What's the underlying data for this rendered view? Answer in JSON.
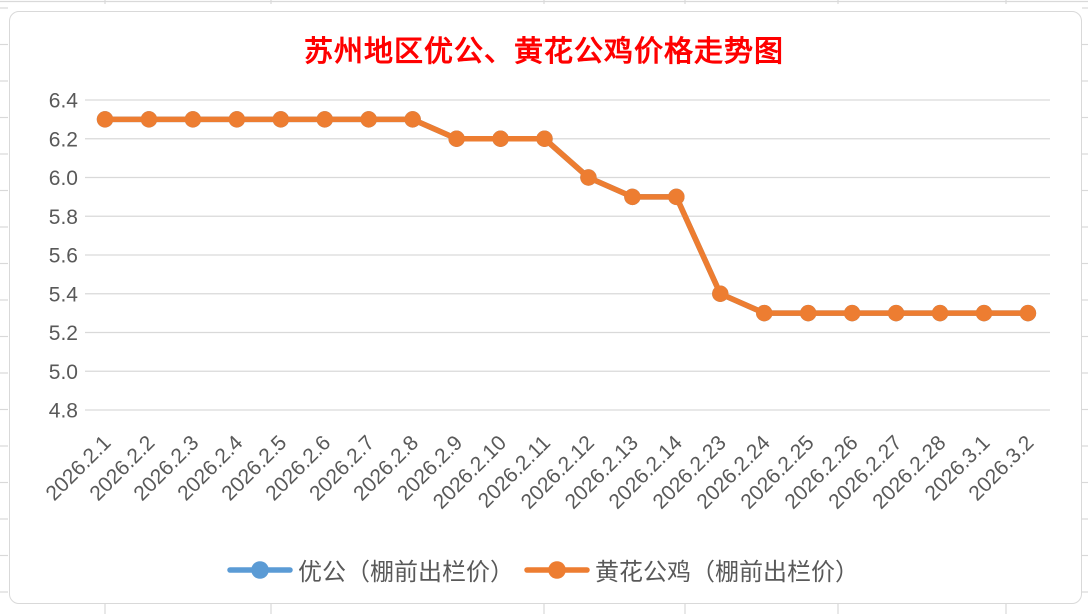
{
  "chart_data": {
    "type": "line",
    "title": "苏州地区优公、黄花公鸡价格走势图",
    "title_color": "#FF0000",
    "categories": [
      "2026.2.1",
      "2026.2.2",
      "2026.2.3",
      "2026.2.4",
      "2026.2.5",
      "2026.2.6",
      "2026.2.7",
      "2026.2.8",
      "2026.2.9",
      "2026.2.10",
      "2026.2.11",
      "2026.2.12",
      "2026.2.13",
      "2026.2.14",
      "2026.2.23",
      "2026.2.24",
      "2026.2.25",
      "2026.2.26",
      "2026.2.27",
      "2026.2.28",
      "2026.3.1",
      "2026.3.2"
    ],
    "series": [
      {
        "name": "优公（棚前出栏价）",
        "color": "#5B9BD5",
        "values": [
          6.3,
          6.3,
          6.3,
          6.3,
          6.3,
          6.3,
          6.3,
          6.3,
          6.2,
          6.2,
          6.2,
          6.0,
          5.9,
          5.9,
          5.4,
          5.3,
          5.3,
          5.3,
          5.3,
          5.3,
          5.3,
          5.3
        ]
      },
      {
        "name": "黄花公鸡（棚前出栏价）",
        "color": "#ED7D31",
        "values": [
          6.3,
          6.3,
          6.3,
          6.3,
          6.3,
          6.3,
          6.3,
          6.3,
          6.2,
          6.2,
          6.2,
          6.0,
          5.9,
          5.9,
          5.4,
          5.3,
          5.3,
          5.3,
          5.3,
          5.3,
          5.3,
          5.3
        ]
      }
    ],
    "xlabel": "",
    "ylabel": "",
    "ylim": [
      4.8,
      6.4
    ],
    "yticks": [
      "6.4",
      "6.2",
      "6.0",
      "5.8",
      "5.6",
      "5.4",
      "5.2",
      "5.0",
      "4.8"
    ],
    "grid": true,
    "legend_position": "bottom"
  },
  "colors": {
    "axis_text": "#595959",
    "gridline": "#D9D9D9",
    "frame_border": "#D9D9D9",
    "sheet_gridline": "#D9D9D9",
    "background": "#FFFFFF"
  }
}
